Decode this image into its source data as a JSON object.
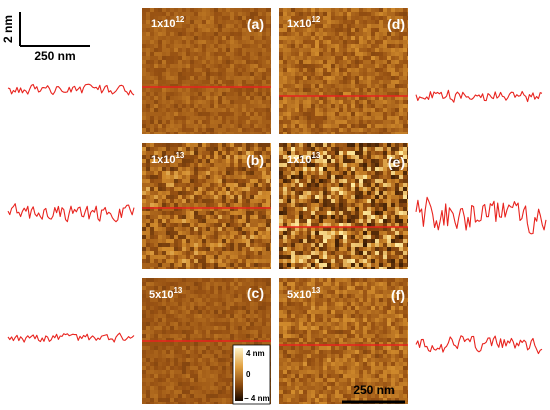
{
  "scale_bar_top_left": {
    "vertical_label": "2 nm",
    "horizontal_label": "250 nm"
  },
  "panels": [
    {
      "letter": "(a)",
      "dose_base": "1x10",
      "dose_exp": "12"
    },
    {
      "letter": "(b)",
      "dose_base": "1x10",
      "dose_exp": "13"
    },
    {
      "letter": "(c)",
      "dose_base": "5x10",
      "dose_exp": "13"
    },
    {
      "letter": "(d)",
      "dose_base": "1x10",
      "dose_exp": "12"
    },
    {
      "letter": "(e)",
      "dose_base": "1x10",
      "dose_exp": "13"
    },
    {
      "letter": "(f)",
      "dose_base": "5x10",
      "dose_exp": "13"
    }
  ],
  "colorbar": {
    "max_label": "4 nm",
    "mid_label": "0",
    "min_label": "− 4 nm"
  },
  "scale_bar_panel_f": {
    "label": "250 nm"
  },
  "colors": {
    "profile_line": "#e8231e",
    "afm_dark": "#3a1a04",
    "afm_mid": "#a85a14",
    "afm_light": "#f0c060"
  }
}
